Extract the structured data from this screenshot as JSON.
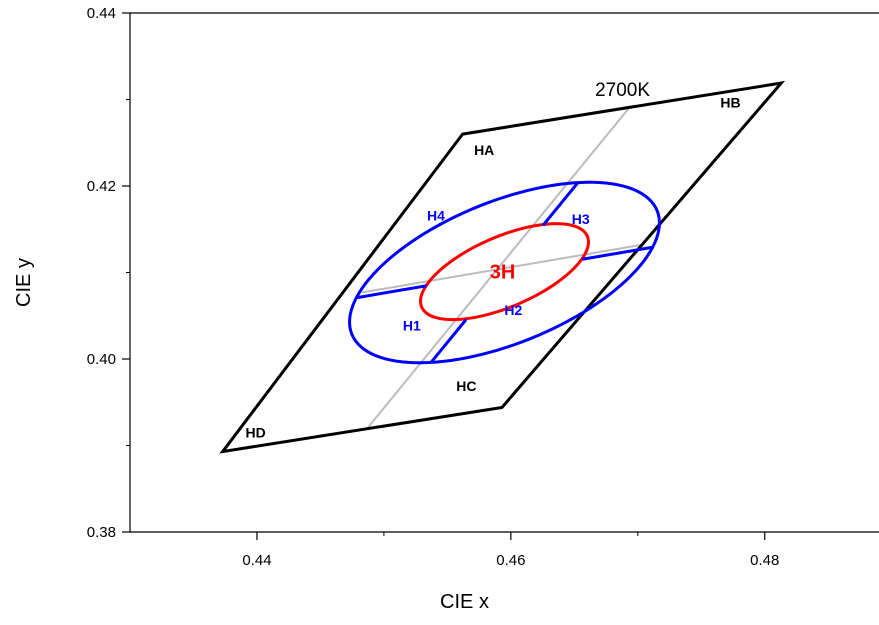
{
  "chart_data": {
    "type": "scatter",
    "title": "",
    "xlabel": "CIE x",
    "ylabel": "CIE y",
    "xlim": [
      0.43,
      0.489
    ],
    "ylim": [
      0.38,
      0.44
    ],
    "x_ticks": [
      0.44,
      0.46,
      0.48
    ],
    "y_ticks": [
      0.38,
      0.4,
      0.42,
      0.44
    ],
    "x_tick_labels": [
      "0.44",
      "0.46",
      "0.48"
    ],
    "y_tick_labels": [
      "0.38",
      "0.40",
      "0.42",
      "0.44"
    ],
    "grid": false,
    "legend": "none",
    "quadrangle": {
      "label": "2700K",
      "corners": [
        {
          "name": "HA",
          "x": 0.4562,
          "y": 0.426
        },
        {
          "name": "HB",
          "x": 0.4813,
          "y": 0.4319
        },
        {
          "name": "HC",
          "x": 0.4593,
          "y": 0.3944
        },
        {
          "name": "HD",
          "x": 0.4373,
          "y": 0.3893
        }
      ],
      "color": "#000000"
    },
    "dividers": [
      {
        "from": {
          "x": 0.4487,
          "y": 0.392
        },
        "to": {
          "x": 0.4693,
          "y": 0.429
        }
      },
      {
        "from": {
          "x": 0.4483,
          "y": 0.4077
        },
        "to": {
          "x": 0.4703,
          "y": 0.4132
        }
      }
    ],
    "divider_color": "#bbbbbb",
    "ellipses": [
      {
        "label": "",
        "center": {
          "x": 0.4595,
          "y": 0.41
        },
        "semi_major": 0.0142,
        "semi_minor": 0.0075,
        "angle_deg": 37,
        "color": "#0000ff"
      },
      {
        "label": "3H",
        "center": {
          "x": 0.4595,
          "y": 0.4101
        },
        "semi_major": 0.0078,
        "semi_minor": 0.0037,
        "angle_deg": 37,
        "color": "#ff0000"
      }
    ],
    "subregion_labels": [
      {
        "text": "H1",
        "x": 0.4522,
        "y": 0.4033
      },
      {
        "text": "H2",
        "x": 0.4602,
        "y": 0.4051
      },
      {
        "text": "H3",
        "x": 0.4655,
        "y": 0.4156
      },
      {
        "text": "H4",
        "x": 0.4541,
        "y": 0.416
      }
    ],
    "corner_labels": [
      {
        "text": "HA",
        "x": 0.4579,
        "y": 0.4236
      },
      {
        "text": "HB",
        "x": 0.4773,
        "y": 0.4291
      },
      {
        "text": "HC",
        "x": 0.4565,
        "y": 0.3963
      },
      {
        "text": "HD",
        "x": 0.4399,
        "y": 0.3909
      }
    ],
    "cct_label": {
      "text": "2700K",
      "x": 0.4688,
      "y": 0.4304
    }
  }
}
